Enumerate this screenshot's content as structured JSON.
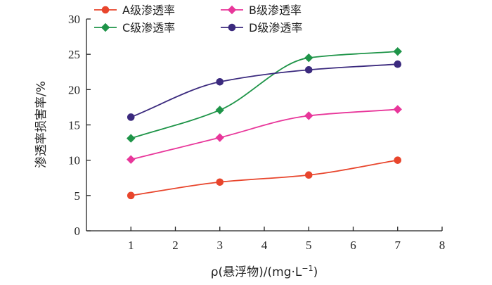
{
  "chart_data": {
    "type": "line",
    "xlabel": "ρ(悬浮物)/(mg·L",
    "xlabel_sup": "−1",
    "xlabel_close": ")",
    "ylabel": "渗透率损害率/%",
    "xlim": [
      0,
      8
    ],
    "ylim": [
      0,
      30
    ],
    "x_ticks": [
      1,
      2,
      3,
      4,
      5,
      6,
      7,
      8
    ],
    "y_ticks": [
      0,
      5,
      10,
      15,
      20,
      25,
      30
    ],
    "x_tick_labels": [
      "1",
      "2",
      "3",
      "4",
      "5",
      "6",
      "7",
      "8"
    ],
    "y_tick_labels": [
      "0",
      "5",
      "10",
      "15",
      "20",
      "25",
      "30"
    ],
    "grid": false,
    "legend_position": "top",
    "series": [
      {
        "name": "A级渗透率",
        "color": "#e8452c",
        "marker": "circle",
        "x": [
          1,
          3,
          5,
          7
        ],
        "values": [
          5.0,
          6.9,
          7.9,
          10.0
        ]
      },
      {
        "name": "B级渗透率",
        "color": "#e8369a",
        "marker": "diamond",
        "x": [
          1,
          3,
          5,
          7
        ],
        "values": [
          10.1,
          13.2,
          16.3,
          17.2
        ]
      },
      {
        "name": "C级渗透率",
        "color": "#1e9448",
        "marker": "diamond",
        "x": [
          1,
          3,
          5,
          7
        ],
        "values": [
          13.1,
          17.1,
          24.5,
          25.4
        ]
      },
      {
        "name": "D级渗透率",
        "color": "#3b2a7e",
        "marker": "circle",
        "x": [
          1,
          3,
          5,
          7
        ],
        "values": [
          16.1,
          21.1,
          22.8,
          23.6
        ]
      }
    ]
  }
}
